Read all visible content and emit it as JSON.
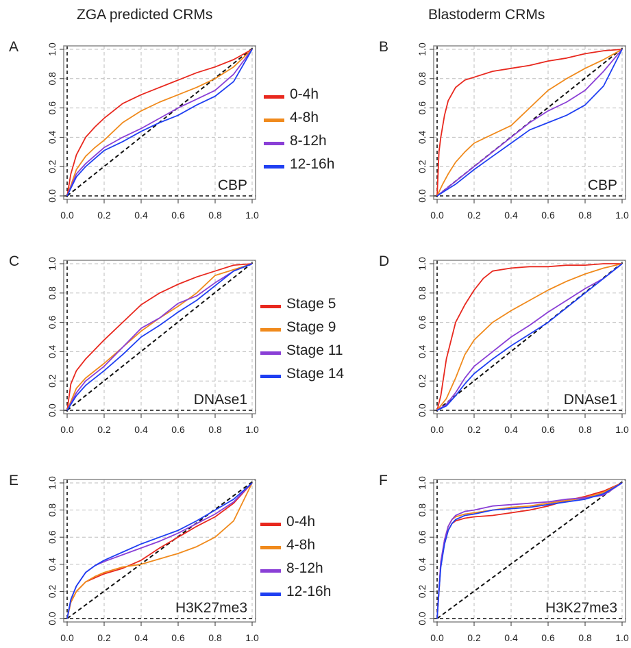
{
  "column_titles": [
    "ZGA predicted CRMs",
    "Blastoderm CRMs"
  ],
  "tick_labels": [
    "0.0",
    "0.2",
    "0.4",
    "0.6",
    "0.8",
    "1.0"
  ],
  "legends": [
    {
      "entries": [
        "0-4h",
        "4-8h",
        "8-12h",
        "12-16h"
      ],
      "colors": [
        "#e8281e",
        "#f08a1c",
        "#8a3fd6",
        "#1f3ff2"
      ]
    },
    {
      "entries": [
        "Stage 5",
        "Stage 9",
        "Stage 11",
        "Stage 14"
      ],
      "colors": [
        "#e8281e",
        "#f08a1c",
        "#8a3fd6",
        "#1f3ff2"
      ]
    },
    {
      "entries": [
        "0-4h",
        "4-8h",
        "8-12h",
        "12-16h"
      ],
      "colors": [
        "#e8281e",
        "#f08a1c",
        "#8a3fd6",
        "#1f3ff2"
      ]
    }
  ],
  "chart_data": [
    {
      "type": "line",
      "panel": "A",
      "annotation": "CBP",
      "xlim": [
        0,
        1
      ],
      "ylim": [
        0,
        1
      ],
      "grid": true,
      "diagonal_reference": true,
      "series": [
        {
          "name": "0-4h",
          "color": "#e8281e",
          "x": [
            0,
            0.02,
            0.05,
            0.1,
            0.15,
            0.2,
            0.3,
            0.4,
            0.5,
            0.6,
            0.7,
            0.8,
            0.9,
            1.0
          ],
          "y": [
            0,
            0.15,
            0.28,
            0.4,
            0.47,
            0.53,
            0.63,
            0.69,
            0.74,
            0.79,
            0.84,
            0.88,
            0.93,
            1.0
          ]
        },
        {
          "name": "4-8h",
          "color": "#f08a1c",
          "x": [
            0,
            0.05,
            0.1,
            0.15,
            0.2,
            0.3,
            0.4,
            0.5,
            0.6,
            0.7,
            0.8,
            0.9,
            1.0
          ],
          "y": [
            0,
            0.18,
            0.27,
            0.33,
            0.38,
            0.5,
            0.58,
            0.64,
            0.69,
            0.74,
            0.8,
            0.88,
            1.0
          ]
        },
        {
          "name": "8-12h",
          "color": "#8a3fd6",
          "x": [
            0,
            0.05,
            0.1,
            0.2,
            0.3,
            0.4,
            0.5,
            0.6,
            0.7,
            0.8,
            0.9,
            1.0
          ],
          "y": [
            0,
            0.15,
            0.22,
            0.33,
            0.4,
            0.46,
            0.53,
            0.6,
            0.66,
            0.72,
            0.83,
            1.0
          ]
        },
        {
          "name": "12-16h",
          "color": "#1f3ff2",
          "x": [
            0,
            0.05,
            0.1,
            0.2,
            0.3,
            0.4,
            0.5,
            0.6,
            0.7,
            0.8,
            0.9,
            1.0
          ],
          "y": [
            0,
            0.13,
            0.2,
            0.31,
            0.37,
            0.44,
            0.5,
            0.55,
            0.62,
            0.68,
            0.78,
            1.0
          ]
        }
      ]
    },
    {
      "type": "line",
      "panel": "B",
      "annotation": "CBP",
      "xlim": [
        0,
        1
      ],
      "ylim": [
        0,
        1
      ],
      "grid": true,
      "diagonal_reference": true,
      "series": [
        {
          "name": "0-4h",
          "color": "#e8281e",
          "x": [
            0,
            0.01,
            0.02,
            0.04,
            0.06,
            0.1,
            0.15,
            0.2,
            0.3,
            0.4,
            0.5,
            0.6,
            0.7,
            0.8,
            0.9,
            1.0
          ],
          "y": [
            0,
            0.3,
            0.4,
            0.55,
            0.65,
            0.74,
            0.79,
            0.81,
            0.85,
            0.87,
            0.89,
            0.92,
            0.94,
            0.97,
            0.99,
            1.0
          ]
        },
        {
          "name": "4-8h",
          "color": "#f08a1c",
          "x": [
            0,
            0.03,
            0.06,
            0.1,
            0.15,
            0.2,
            0.3,
            0.4,
            0.5,
            0.6,
            0.7,
            0.8,
            0.9,
            1.0
          ],
          "y": [
            0,
            0.08,
            0.15,
            0.23,
            0.3,
            0.36,
            0.42,
            0.48,
            0.6,
            0.72,
            0.8,
            0.87,
            0.93,
            1.0
          ]
        },
        {
          "name": "8-12h",
          "color": "#8a3fd6",
          "x": [
            0,
            0.05,
            0.1,
            0.2,
            0.3,
            0.4,
            0.5,
            0.6,
            0.7,
            0.8,
            0.9,
            1.0
          ],
          "y": [
            0,
            0.05,
            0.1,
            0.2,
            0.3,
            0.4,
            0.5,
            0.58,
            0.64,
            0.72,
            0.85,
            1.0
          ]
        },
        {
          "name": "12-16h",
          "color": "#1f3ff2",
          "x": [
            0,
            0.05,
            0.1,
            0.2,
            0.3,
            0.4,
            0.5,
            0.6,
            0.7,
            0.8,
            0.9,
            1.0
          ],
          "y": [
            0,
            0.04,
            0.08,
            0.18,
            0.27,
            0.36,
            0.45,
            0.5,
            0.55,
            0.62,
            0.75,
            1.0
          ]
        }
      ]
    },
    {
      "type": "line",
      "panel": "C",
      "annotation": "DNAse1",
      "xlim": [
        0,
        1
      ],
      "ylim": [
        0,
        1
      ],
      "grid": true,
      "diagonal_reference": true,
      "series": [
        {
          "name": "Stage 5",
          "color": "#e8281e",
          "x": [
            0,
            0.02,
            0.05,
            0.1,
            0.2,
            0.3,
            0.4,
            0.5,
            0.6,
            0.7,
            0.8,
            0.9,
            1.0
          ],
          "y": [
            0,
            0.18,
            0.27,
            0.35,
            0.48,
            0.6,
            0.72,
            0.8,
            0.86,
            0.91,
            0.95,
            0.99,
            1.0
          ]
        },
        {
          "name": "Stage 9",
          "color": "#f08a1c",
          "x": [
            0,
            0.05,
            0.1,
            0.2,
            0.3,
            0.4,
            0.5,
            0.6,
            0.7,
            0.8,
            0.9,
            1.0
          ],
          "y": [
            0,
            0.15,
            0.22,
            0.32,
            0.43,
            0.54,
            0.63,
            0.71,
            0.8,
            0.92,
            0.96,
            1.0
          ]
        },
        {
          "name": "Stage 11",
          "color": "#8a3fd6",
          "x": [
            0,
            0.05,
            0.1,
            0.2,
            0.3,
            0.4,
            0.5,
            0.6,
            0.7,
            0.8,
            0.9,
            1.0
          ],
          "y": [
            0,
            0.12,
            0.2,
            0.3,
            0.43,
            0.56,
            0.63,
            0.73,
            0.78,
            0.87,
            0.95,
            1.0
          ]
        },
        {
          "name": "Stage 14",
          "color": "#1f3ff2",
          "x": [
            0,
            0.05,
            0.1,
            0.2,
            0.3,
            0.4,
            0.5,
            0.6,
            0.7,
            0.8,
            0.9,
            1.0
          ],
          "y": [
            0,
            0.1,
            0.17,
            0.27,
            0.38,
            0.5,
            0.58,
            0.67,
            0.75,
            0.85,
            0.95,
            1.0
          ]
        }
      ]
    },
    {
      "type": "line",
      "panel": "D",
      "annotation": "DNAse1",
      "xlim": [
        0,
        1
      ],
      "ylim": [
        0,
        1
      ],
      "grid": true,
      "diagonal_reference": true,
      "series": [
        {
          "name": "Stage 5",
          "color": "#e8281e",
          "x": [
            0,
            0.02,
            0.05,
            0.1,
            0.15,
            0.2,
            0.25,
            0.3,
            0.4,
            0.5,
            0.6,
            0.7,
            0.8,
            0.9,
            1.0
          ],
          "y": [
            0,
            0.1,
            0.35,
            0.6,
            0.72,
            0.82,
            0.9,
            0.95,
            0.97,
            0.98,
            0.98,
            0.99,
            0.99,
            1.0,
            1.0
          ]
        },
        {
          "name": "Stage 9",
          "color": "#f08a1c",
          "x": [
            0,
            0.05,
            0.1,
            0.15,
            0.2,
            0.3,
            0.4,
            0.5,
            0.6,
            0.7,
            0.8,
            0.9,
            1.0
          ],
          "y": [
            0,
            0.08,
            0.22,
            0.38,
            0.48,
            0.6,
            0.68,
            0.75,
            0.82,
            0.88,
            0.93,
            0.97,
            1.0
          ]
        },
        {
          "name": "Stage 11",
          "color": "#8a3fd6",
          "x": [
            0,
            0.05,
            0.1,
            0.15,
            0.2,
            0.3,
            0.4,
            0.5,
            0.6,
            0.7,
            0.8,
            0.9,
            1.0
          ],
          "y": [
            0,
            0.04,
            0.12,
            0.22,
            0.3,
            0.4,
            0.5,
            0.58,
            0.67,
            0.75,
            0.83,
            0.9,
            1.0
          ]
        },
        {
          "name": "Stage 14",
          "color": "#1f3ff2",
          "x": [
            0,
            0.05,
            0.1,
            0.15,
            0.2,
            0.3,
            0.4,
            0.5,
            0.6,
            0.7,
            0.8,
            0.9,
            1.0
          ],
          "y": [
            0,
            0.03,
            0.1,
            0.18,
            0.25,
            0.35,
            0.44,
            0.52,
            0.6,
            0.7,
            0.8,
            0.9,
            1.0
          ]
        }
      ]
    },
    {
      "type": "line",
      "panel": "E",
      "annotation": "H3K27me3",
      "xlim": [
        0,
        1
      ],
      "ylim": [
        0,
        1
      ],
      "grid": true,
      "diagonal_reference": true,
      "series": [
        {
          "name": "0-4h",
          "color": "#e8281e",
          "x": [
            0,
            0.02,
            0.05,
            0.1,
            0.15,
            0.2,
            0.3,
            0.4,
            0.5,
            0.6,
            0.7,
            0.8,
            0.9,
            1.0
          ],
          "y": [
            0,
            0.12,
            0.2,
            0.27,
            0.3,
            0.33,
            0.37,
            0.43,
            0.52,
            0.6,
            0.68,
            0.75,
            0.85,
            1.0
          ]
        },
        {
          "name": "4-8h",
          "color": "#f08a1c",
          "x": [
            0,
            0.02,
            0.05,
            0.1,
            0.15,
            0.2,
            0.3,
            0.4,
            0.5,
            0.6,
            0.7,
            0.8,
            0.9,
            1.0
          ],
          "y": [
            0,
            0.12,
            0.2,
            0.27,
            0.31,
            0.34,
            0.38,
            0.4,
            0.44,
            0.48,
            0.53,
            0.6,
            0.72,
            1.0
          ]
        },
        {
          "name": "8-12h",
          "color": "#8a3fd6",
          "x": [
            0,
            0.02,
            0.05,
            0.1,
            0.15,
            0.2,
            0.3,
            0.4,
            0.5,
            0.6,
            0.7,
            0.8,
            0.9,
            1.0
          ],
          "y": [
            0,
            0.14,
            0.24,
            0.34,
            0.39,
            0.42,
            0.47,
            0.52,
            0.57,
            0.63,
            0.7,
            0.77,
            0.86,
            1.0
          ]
        },
        {
          "name": "12-16h",
          "color": "#1f3ff2",
          "x": [
            0,
            0.02,
            0.05,
            0.1,
            0.15,
            0.2,
            0.3,
            0.4,
            0.5,
            0.6,
            0.7,
            0.8,
            0.9,
            1.0
          ],
          "y": [
            0,
            0.14,
            0.24,
            0.34,
            0.39,
            0.43,
            0.49,
            0.55,
            0.6,
            0.65,
            0.72,
            0.8,
            0.88,
            1.0
          ]
        }
      ]
    },
    {
      "type": "line",
      "panel": "F",
      "annotation": "H3K27me3",
      "xlim": [
        0,
        1
      ],
      "ylim": [
        0,
        1
      ],
      "grid": true,
      "diagonal_reference": true,
      "series": [
        {
          "name": "0-4h",
          "color": "#e8281e",
          "x": [
            0,
            0.01,
            0.02,
            0.04,
            0.06,
            0.08,
            0.1,
            0.15,
            0.2,
            0.3,
            0.4,
            0.5,
            0.6,
            0.7,
            0.8,
            0.9,
            1.0
          ],
          "y": [
            0,
            0.2,
            0.4,
            0.55,
            0.65,
            0.7,
            0.72,
            0.74,
            0.75,
            0.76,
            0.78,
            0.8,
            0.83,
            0.87,
            0.9,
            0.94,
            1.0
          ]
        },
        {
          "name": "4-8h",
          "color": "#f08a1c",
          "x": [
            0,
            0.01,
            0.02,
            0.04,
            0.06,
            0.08,
            0.1,
            0.15,
            0.2,
            0.3,
            0.4,
            0.5,
            0.6,
            0.7,
            0.8,
            0.9,
            1.0
          ],
          "y": [
            0,
            0.2,
            0.4,
            0.58,
            0.68,
            0.73,
            0.75,
            0.77,
            0.78,
            0.8,
            0.82,
            0.83,
            0.85,
            0.87,
            0.89,
            0.93,
            1.0
          ]
        },
        {
          "name": "8-12h",
          "color": "#8a3fd6",
          "x": [
            0,
            0.01,
            0.02,
            0.04,
            0.06,
            0.08,
            0.1,
            0.15,
            0.2,
            0.3,
            0.4,
            0.5,
            0.6,
            0.7,
            0.8,
            0.9,
            1.0
          ],
          "y": [
            0,
            0.22,
            0.42,
            0.58,
            0.68,
            0.73,
            0.76,
            0.79,
            0.8,
            0.83,
            0.84,
            0.85,
            0.86,
            0.88,
            0.89,
            0.91,
            1.0
          ]
        },
        {
          "name": "12-16h",
          "color": "#1f3ff2",
          "x": [
            0,
            0.01,
            0.02,
            0.04,
            0.06,
            0.08,
            0.1,
            0.15,
            0.2,
            0.3,
            0.4,
            0.5,
            0.6,
            0.7,
            0.8,
            0.9,
            1.0
          ],
          "y": [
            0,
            0.2,
            0.38,
            0.55,
            0.65,
            0.7,
            0.73,
            0.76,
            0.77,
            0.8,
            0.81,
            0.82,
            0.84,
            0.86,
            0.88,
            0.92,
            1.0
          ]
        }
      ]
    }
  ]
}
